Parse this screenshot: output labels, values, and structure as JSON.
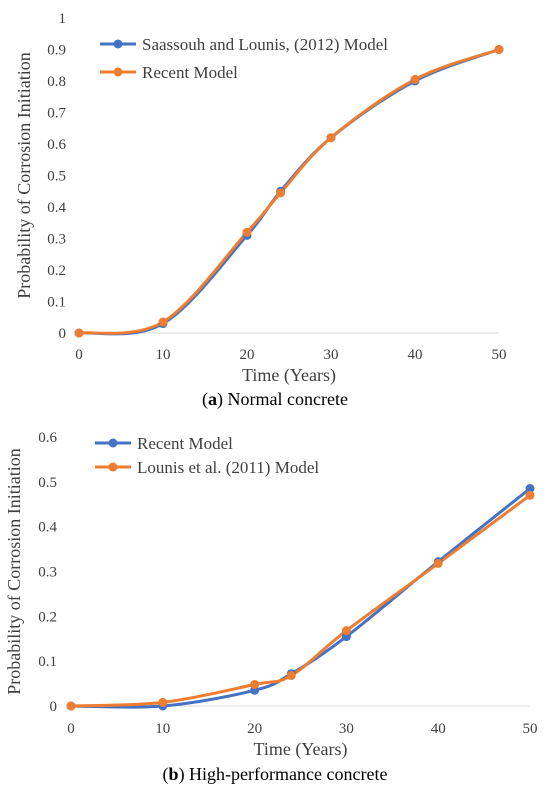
{
  "chart_data": [
    {
      "type": "line",
      "caption_letter": "a",
      "caption_text": " Normal concrete",
      "xlabel": "Time (Years)",
      "ylabel": "Probability of Corrosion Initiation",
      "xlim": [
        0,
        50
      ],
      "ylim": [
        0,
        1
      ],
      "xticks": [
        "0",
        "10",
        "20",
        "30",
        "40",
        "50"
      ],
      "yticks": [
        "0",
        "0.1",
        "0.2",
        "0.3",
        "0.4",
        "0.5",
        "0.6",
        "0.7",
        "0.8",
        "0.9",
        "1"
      ],
      "legend_position": "top-left",
      "series": [
        {
          "name": "Saassouh and Lounis, (2012) Model",
          "color": "#4472C4",
          "x": [
            0,
            10,
            20,
            24,
            30,
            40,
            50
          ],
          "values": [
            0,
            0.03,
            0.31,
            0.45,
            0.62,
            0.8,
            0.9
          ]
        },
        {
          "name": "Recent Model",
          "color": "#ED7D31",
          "x": [
            0,
            10,
            20,
            24,
            30,
            40,
            50
          ],
          "values": [
            0,
            0.035,
            0.32,
            0.445,
            0.62,
            0.805,
            0.9
          ]
        }
      ]
    },
    {
      "type": "line",
      "caption_letter": "b",
      "caption_text": " High-performance concrete",
      "xlabel": "Time (Years)",
      "ylabel": "Probability of Corrosion Initiation",
      "xlim": [
        0,
        50
      ],
      "ylim": [
        0,
        0.6
      ],
      "xticks": [
        "0",
        "10",
        "20",
        "30",
        "40",
        "50"
      ],
      "yticks": [
        "0",
        "0.1",
        "0.2",
        "0.3",
        "0.4",
        "0.5",
        "0.6"
      ],
      "legend_position": "top-left",
      "series": [
        {
          "name": "Recent Model",
          "color": "#4472C4",
          "x": [
            0,
            10,
            20,
            24,
            30,
            40,
            50
          ],
          "values": [
            0,
            0.0,
            0.035,
            0.072,
            0.155,
            0.322,
            0.485
          ]
        },
        {
          "name": "Lounis et al. (2011) Model",
          "color": "#ED7D31",
          "x": [
            0,
            10,
            20,
            24,
            30,
            40,
            50
          ],
          "values": [
            0,
            0.008,
            0.048,
            0.068,
            0.168,
            0.318,
            0.47
          ]
        }
      ]
    }
  ]
}
